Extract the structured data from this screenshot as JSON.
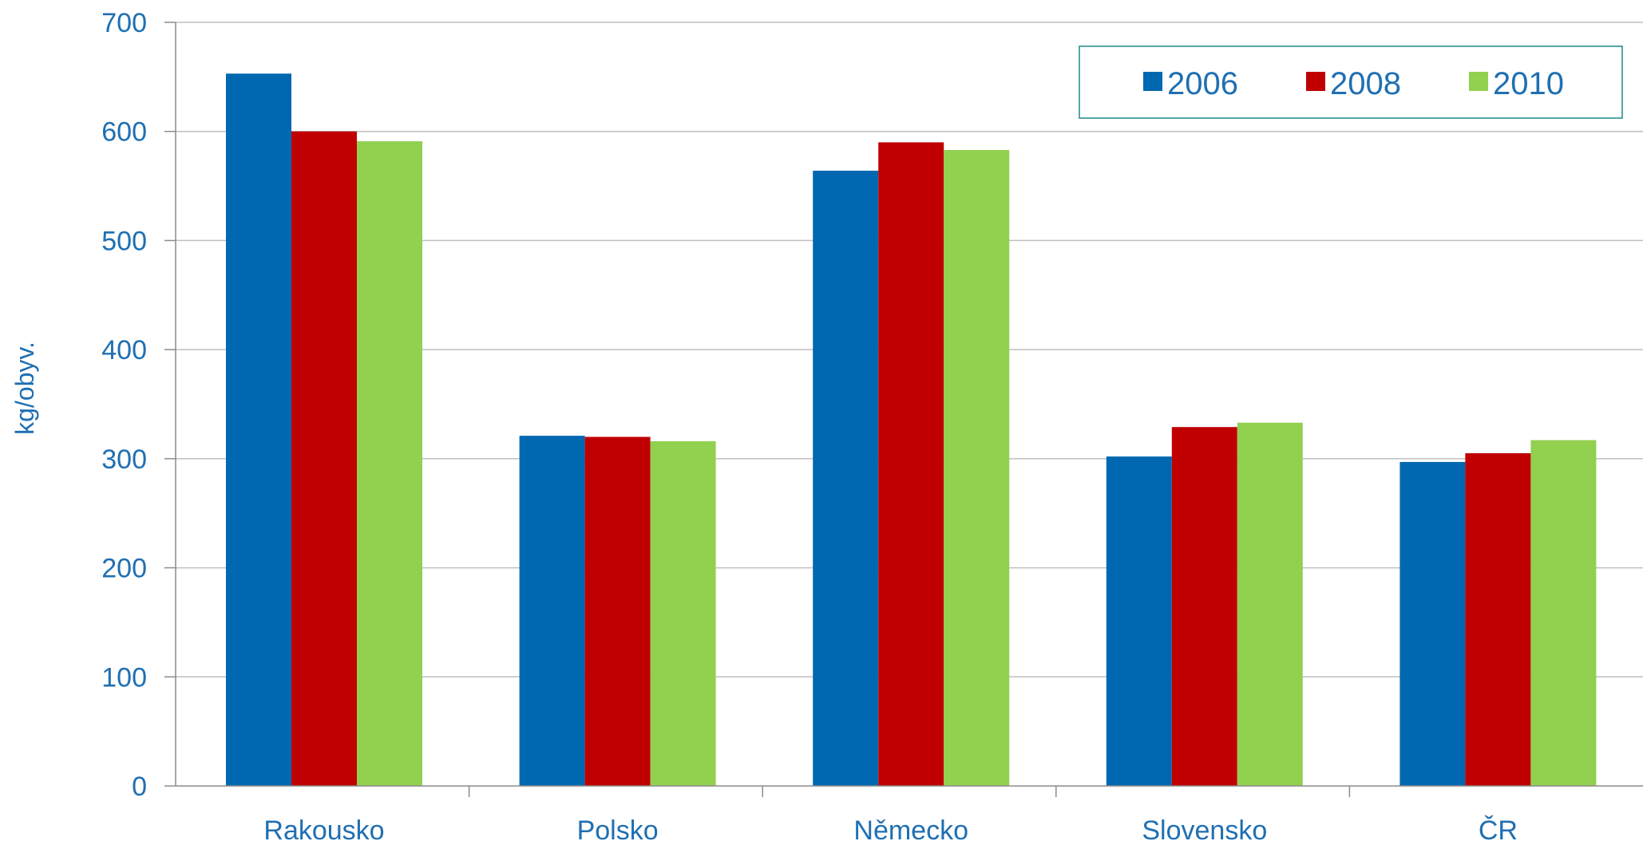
{
  "chart_data": {
    "type": "bar",
    "categories": [
      "Rakousko",
      "Polsko",
      "Německo",
      "Slovensko",
      "ČR"
    ],
    "series": [
      {
        "name": "2006",
        "color": "#0068b0",
        "values": [
          653,
          321,
          564,
          302,
          297
        ]
      },
      {
        "name": "2008",
        "color": "#c00000",
        "values": [
          600,
          320,
          590,
          329,
          305
        ]
      },
      {
        "name": "2010",
        "color": "#92d050",
        "values": [
          591,
          316,
          583,
          333,
          317
        ]
      }
    ],
    "title": "",
    "xlabel": "",
    "ylabel": "kg/obyv.",
    "ylim": [
      0,
      700
    ],
    "yticks": [
      0,
      100,
      200,
      300,
      400,
      500,
      600,
      700
    ],
    "grid": true,
    "legend_position": "top-right"
  }
}
